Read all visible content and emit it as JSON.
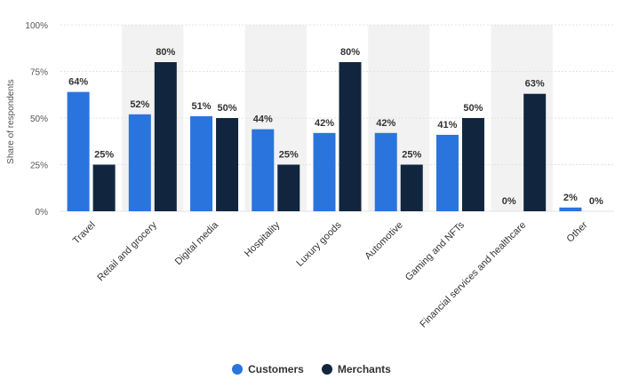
{
  "chart_data": {
    "type": "bar",
    "ylabel": "Share of respondents",
    "ylim": [
      0,
      100
    ],
    "yticks": [
      "0%",
      "25%",
      "50%",
      "75%",
      "100%"
    ],
    "ytick_values": [
      0,
      25,
      50,
      75,
      100
    ],
    "categories": [
      "Travel",
      "Retail and grocery",
      "Digital media",
      "Hospitality",
      "Luxury goods",
      "Automotive",
      "Gaming and NFTs",
      "Financial services and healthcare",
      "Other"
    ],
    "series": [
      {
        "name": "Customers",
        "color": "#2a74de",
        "values": [
          64,
          52,
          51,
          44,
          42,
          42,
          41,
          0,
          2
        ]
      },
      {
        "name": "Merchants",
        "color": "#11263e",
        "values": [
          25,
          80,
          50,
          25,
          80,
          25,
          50,
          63,
          0
        ]
      }
    ],
    "value_suffix": "%",
    "legend_position": "bottom-center",
    "band_color": "#f2f2f2"
  }
}
